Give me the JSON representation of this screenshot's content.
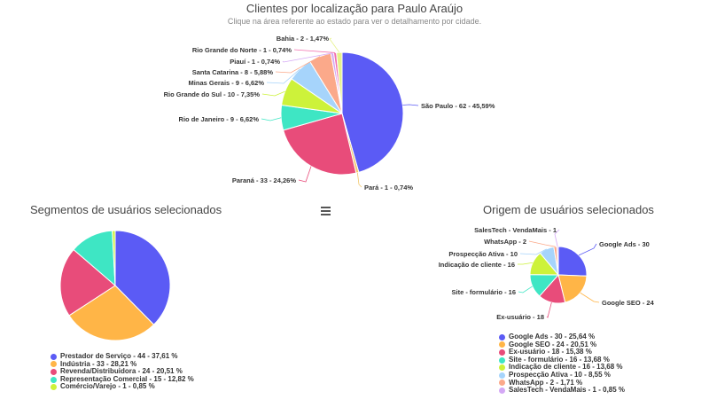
{
  "header": {
    "title": "Clientes por localização para Paulo Araújo",
    "subtitle": "Clique na área referente ao estado para ver o detalhamento por cidade."
  },
  "segments_title": "Segmentos de usuários selecionados",
  "origin_title": "Origem de usuários selecionados",
  "menu_icon": "hamburger-menu-icon",
  "chart_data": [
    {
      "type": "pie",
      "title": "Clientes por localização para Paulo Araújo",
      "slices": [
        {
          "label": "São Paulo - 62 - 45,59%",
          "name": "São Paulo",
          "value": 62,
          "color": "#5b5bf5"
        },
        {
          "label": "Pará - 1 - 0,74%",
          "name": "Pará",
          "value": 1,
          "color": "#f2c86a"
        },
        {
          "label": "Paraná - 33 - 24,26%",
          "name": "Paraná",
          "value": 33,
          "color": "#e84c7a"
        },
        {
          "label": "Rio de Janeiro - 9 - 6,62%",
          "name": "Rio de Janeiro",
          "value": 9,
          "color": "#3ee6c4"
        },
        {
          "label": "Rio Grande do Sul - 10 - 7,35%",
          "name": "Rio Grande do Sul",
          "value": 10,
          "color": "#cdf23a"
        },
        {
          "label": "Minas Gerais - 9 - 6,62%",
          "name": "Minas Gerais",
          "value": 9,
          "color": "#a6d4fb"
        },
        {
          "label": "Santa Catarina - 8 - 5,88%",
          "name": "Santa Catarina",
          "value": 8,
          "color": "#fba98a"
        },
        {
          "label": "Piauí - 1 - 0,74%",
          "name": "Piauí",
          "value": 1,
          "color": "#d4a8f5"
        },
        {
          "label": "Rio Grande do Norte - 1 - 0,74%",
          "name": "Rio Grande do Norte",
          "value": 1,
          "color": "#f26fae"
        },
        {
          "label": "Bahia - 2 - 1,47%",
          "name": "Bahia",
          "value": 2,
          "color": "#e6f28a"
        }
      ]
    },
    {
      "type": "pie",
      "title": "Segmentos de usuários selecionados",
      "slices": [
        {
          "label": "Prestador de Serviço - 44 - 37,61 %",
          "value": 44,
          "color": "#5b5bf5"
        },
        {
          "label": "Indústria - 33 - 28,21 %",
          "value": 33,
          "color": "#ffb547"
        },
        {
          "label": "Revenda/Distribuidora - 24 - 20,51 %",
          "value": 24,
          "color": "#e84c7a"
        },
        {
          "label": "Representação Comercial - 15 - 12,82 %",
          "value": 15,
          "color": "#3ee6c4"
        },
        {
          "label": "Comércio/Varejo - 1 - 0,85 %",
          "value": 1,
          "color": "#cdf23a"
        }
      ]
    },
    {
      "type": "pie",
      "title": "Origem de usuários selecionados",
      "slices": [
        {
          "label": "Google Ads - 30",
          "legend": "Google Ads - 30 - 25,64 %",
          "value": 30,
          "color": "#5b5bf5"
        },
        {
          "label": "Google SEO - 24",
          "legend": "Google SEO - 24 - 20,51 %",
          "value": 24,
          "color": "#ffb547"
        },
        {
          "label": "Ex-usuário - 18",
          "legend": "Ex-usuário - 18 - 15,38 %",
          "value": 18,
          "color": "#e84c7a"
        },
        {
          "label": "Site - formulário - 16",
          "legend": "Site - formulário - 16 - 13,68 %",
          "value": 16,
          "color": "#3ee6c4"
        },
        {
          "label": "Indicação de cliente - 16",
          "legend": "Indicação de cliente - 16 - 13,68 %",
          "value": 16,
          "color": "#cdf23a"
        },
        {
          "label": "Prospecção Ativa - 10",
          "legend": "Prospecção Ativa - 10 - 8,55 %",
          "value": 10,
          "color": "#a6d4fb"
        },
        {
          "label": "WhatsApp - 2",
          "legend": "WhatsApp - 2 - 1,71 %",
          "value": 2,
          "color": "#fba98a"
        },
        {
          "label": "SalesTech - VendaMais - 1",
          "legend": "SalesTech - VendaMais - 1 - 0,85 %",
          "value": 1,
          "color": "#d4a8f5"
        }
      ]
    }
  ]
}
